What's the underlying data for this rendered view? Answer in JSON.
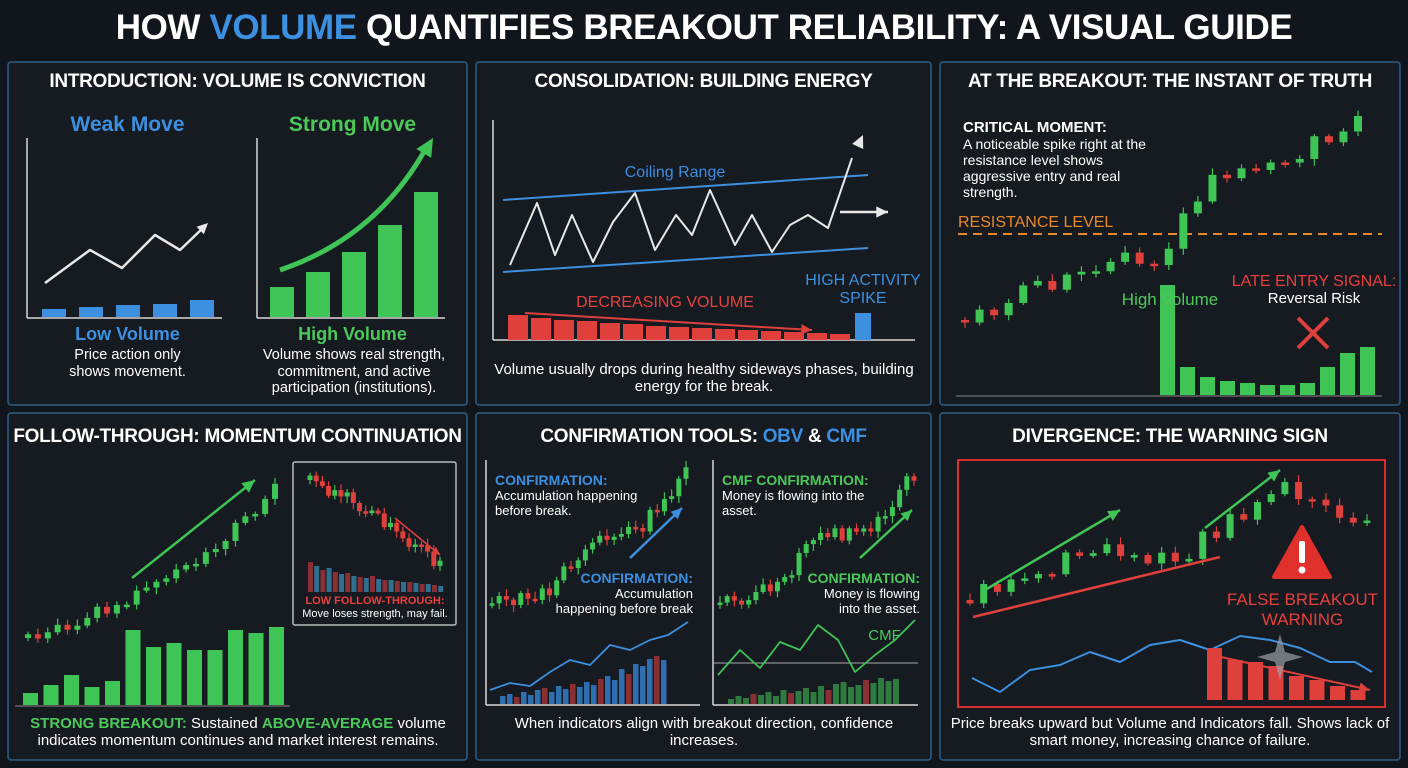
{
  "title": {
    "lead": "HOW",
    "highlight": "VOLUME",
    "rest": "QUANTIFIES BREAKOUT RELIABILITY: A VISUAL GUIDE"
  },
  "panels": [
    {
      "heading": "INTRODUCTION: VOLUME IS CONVICTION",
      "weak_label": "Weak Move",
      "strong_label": "Strong Move",
      "low_volume": "Low Volume",
      "low_text": "Price action only shows movement.",
      "high_volume": "High Volume",
      "high_text": "Volume shows real strength, commitment, and active participation (institutions)."
    },
    {
      "heading": "CONSOLIDATION: BUILDING ENERGY",
      "range_label": "Coiling Range",
      "decreasing": "DECREASING VOLUME",
      "spike": "HIGH ACTIVITY SPIKE",
      "caption": "Volume usually drops during healthy sideways phases, building energy for the break."
    },
    {
      "heading": "AT THE BREAKOUT: THE INSTANT OF TRUTH",
      "critical_title": "CRITICAL MOMENT:",
      "critical_text": "A noticeable spike right at the resistance level shows aggressive entry and real strength.",
      "resistance": "RESISTANCE LEVEL",
      "high_volume": "High Volume",
      "late_title": "LATE ENTRY SIGNAL:",
      "late_text": "Reversal Risk"
    },
    {
      "heading": "FOLLOW-THROUGH: MOMENTUM CONTINUATION",
      "inset_title": "LOW FOLLOW-THROUGH:",
      "inset_text": "Move loses strength, may fail.",
      "caption": {
        "strong": "STRONG BREAKOUT:",
        "mid": "Sustained",
        "above": "ABOVE-AVERAGE",
        "rest": "volume indicates momentum continues and market interest remains."
      }
    },
    {
      "heading": {
        "lead": "CONFIRMATION TOOLS:",
        "obv": "OBV",
        "amp": "&",
        "cmf": "CMF"
      },
      "left_title": "CONFIRMATION:",
      "left_text": "Accumulation happening before break.",
      "left_title2": "CONFIRMATION:",
      "left_text2": "Accumulation happening before break",
      "right_title": "CMF CONFIRMATION:",
      "right_text": "Money is flowing into the asset.",
      "right_title2": "CONFIRMATION:",
      "right_text2": "Money is flowing into the asset.",
      "cmf_label": "CMF",
      "caption": "When indicators align with breakout direction, confidence increases."
    },
    {
      "heading": "DIVERGENCE: THE WARNING SIGN",
      "warning": "FALSE BREAKOUT WARNING",
      "caption": "Price breaks upward but Volume and Indicators fall. Shows lack of smart money, increasing chance of failure."
    }
  ]
}
